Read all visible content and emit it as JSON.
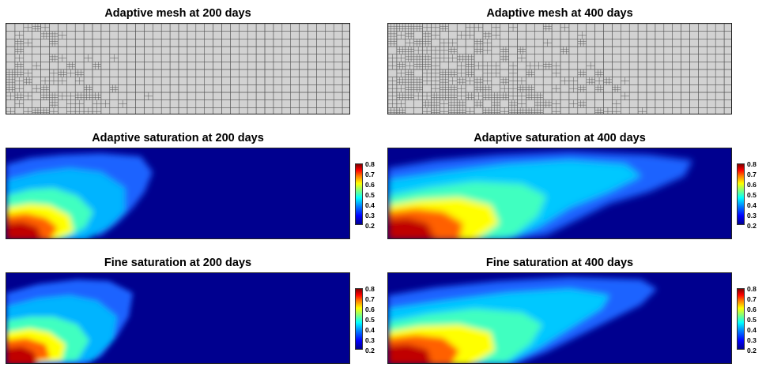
{
  "figure": {
    "titles": {
      "mesh_200": "Adaptive mesh at 200 days",
      "mesh_400": "Adaptive mesh at 400 days",
      "adapt_sat_200": "Adaptive saturation at 200 days",
      "adapt_sat_400": "Adaptive saturation at 400 days",
      "fine_sat_200": "Fine saturation at 200 days",
      "fine_sat_400": "Fine saturation at 400 days"
    },
    "colorbar": {
      "ticks": [
        "0.8",
        "0.7",
        "0.6",
        "0.5",
        "0.4",
        "0.3",
        "0.2"
      ],
      "min": 0.2,
      "max": 0.8
    },
    "colors": {
      "mesh_bg": "#d2d2d2",
      "mesh_line": "#555555",
      "sat_background": "#00008f"
    }
  }
}
